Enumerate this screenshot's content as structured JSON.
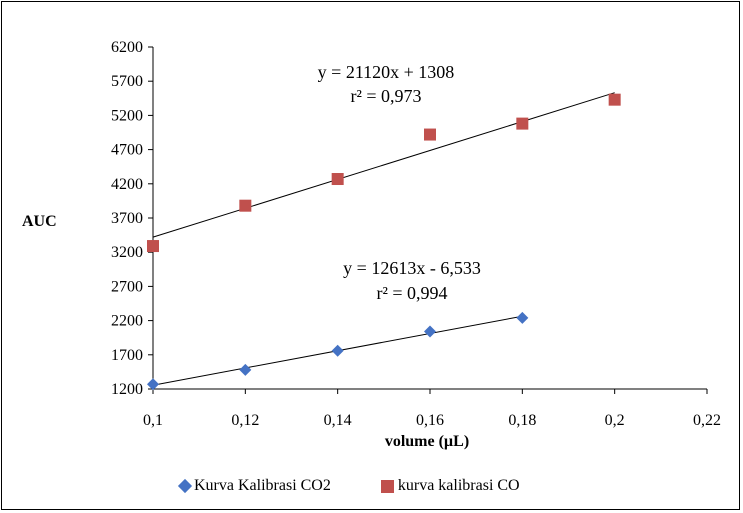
{
  "chart_data": {
    "type": "scatter",
    "title": "",
    "xlabel": "volume (µL)",
    "ylabel": "AUC",
    "xlim": [
      0.1,
      0.22
    ],
    "ylim": [
      1200,
      6200
    ],
    "x_ticks": [
      0.1,
      0.12,
      0.14,
      0.16,
      0.18,
      0.2,
      0.22
    ],
    "x_tick_labels": [
      "0,1",
      "0,12",
      "0,14",
      "0,16",
      "0,18",
      "0,2",
      "0,22"
    ],
    "y_ticks": [
      1200,
      1700,
      2200,
      2700,
      3200,
      3700,
      4200,
      4700,
      5200,
      5700,
      6200
    ],
    "y_tick_labels": [
      "1200",
      "1700",
      "2200",
      "2700",
      "3200",
      "3700",
      "4200",
      "4700",
      "5200",
      "5700",
      "6200"
    ],
    "grid": false,
    "legend_position": "bottom",
    "series": [
      {
        "name": "Kurva Kalibrasi CO2",
        "marker": "diamond",
        "color": "#4472C4",
        "x": [
          0.1,
          0.12,
          0.14,
          0.16,
          0.18
        ],
        "y": [
          1270,
          1480,
          1760,
          2040,
          2240
        ],
        "trendline": {
          "x": [
            0.1,
            0.18
          ],
          "y": [
            1255,
            2264
          ]
        },
        "equation": "y = 12613x - 6,533",
        "r2_label": "r² = 0,994"
      },
      {
        "name": "kurva kalibrasi CO",
        "marker": "square",
        "color": "#C0504D",
        "x": [
          0.1,
          0.12,
          0.14,
          0.16,
          0.18,
          0.2
        ],
        "y": [
          3290,
          3880,
          4270,
          4920,
          5080,
          5430
        ],
        "trendline": {
          "x": [
            0.1,
            0.2
          ],
          "y": [
            3420,
            5532
          ]
        },
        "equation": "y = 21120x + 1308",
        "r2_label": "r² = 0,973"
      }
    ]
  }
}
